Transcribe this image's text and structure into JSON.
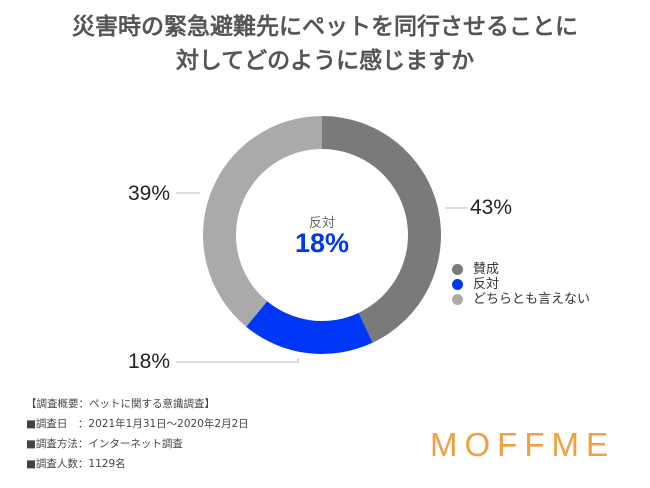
{
  "title_lines": [
    "災害時の緊急避難先にペットを同行させることに",
    "対してどのように感じますか"
  ],
  "chart_data": {
    "type": "pie",
    "donut": true,
    "title": "災害時の緊急避難先にペットを同行させることに対してどのように感じますか",
    "categories": [
      "賛成",
      "反対",
      "どちらとも言えない"
    ],
    "values": [
      43,
      18,
      39
    ],
    "labels": [
      "43%",
      "18%",
      "39%"
    ],
    "colors": [
      "#7a7a7a",
      "#0036f5",
      "#aaaaaa"
    ],
    "center": {
      "label": "反対",
      "value": "18%"
    },
    "legend_position": "right"
  },
  "notes": [
    "【調査概要：ペットに関する意識調査】",
    "■調査日　：2021年1月31日〜2020年2月2日",
    "■調査方法：インターネット調査",
    "■調査人数：1129名"
  ],
  "logo": "MOFFME"
}
